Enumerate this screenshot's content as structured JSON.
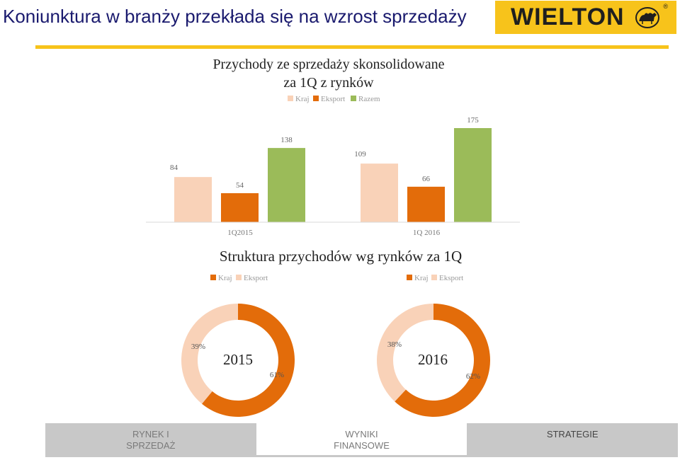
{
  "slide": {
    "title": "Koniunktura w branży przekłada się na wzrost sprzedaży"
  },
  "logo": {
    "text": "WIELTON",
    "registered": "®",
    "icon": "camel-icon"
  },
  "colors": {
    "kraj_bar": "#f9d2b8",
    "eksport_bar": "#e36c0a",
    "razem_bar": "#9bbb59",
    "accent": "#f7c31b",
    "title": "#1a1a6e"
  },
  "chart_data": [
    {
      "type": "bar",
      "title": "Przychody ze sprzedaży  skonsolidowane za 1Q z rynków",
      "title_lines": [
        "Przychody ze sprzedaży  skonsolidowane",
        "za 1Q z rynków"
      ],
      "categories": [
        "1Q2015",
        "1Q 2016"
      ],
      "series": [
        {
          "name": "Kraj",
          "values": [
            84,
            109
          ]
        },
        {
          "name": "Eksport",
          "values": [
            54,
            66
          ]
        },
        {
          "name": "Razem",
          "values": [
            138,
            175
          ]
        }
      ],
      "ylim": [
        0,
        175
      ],
      "legend": "top",
      "grid": false
    },
    {
      "type": "pie",
      "subtype": "donut",
      "center_label": "2015",
      "slices": [
        {
          "name": "Kraj",
          "value": 61,
          "label": "61%"
        },
        {
          "name": "Eksport",
          "value": 39,
          "label": "39%"
        }
      ],
      "legend": "top-left"
    },
    {
      "type": "pie",
      "subtype": "donut",
      "center_label": "2016",
      "slices": [
        {
          "name": "Kraj",
          "value": 62,
          "label": "62%"
        },
        {
          "name": "Eksport",
          "value": 38,
          "label": "38%"
        }
      ],
      "legend": "top-left"
    }
  ],
  "section2": {
    "title": "Struktura przychodów wg rynków za 1Q"
  },
  "nav": {
    "tabs": [
      {
        "label": "RYNEK I\nSPRZEDAŻ"
      },
      {
        "label": "WYNIKI\nFINANSOWE"
      },
      {
        "label": "STRATEGIE"
      }
    ]
  }
}
